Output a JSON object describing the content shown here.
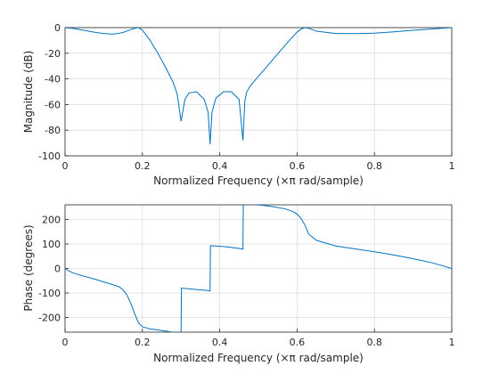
{
  "chart_data": [
    {
      "type": "line",
      "xlabel": "Normalized Frequency  (×π rad/sample)",
      "ylabel": "Magnitude (dB)",
      "xlim": [
        0,
        1
      ],
      "ylim": [
        -100,
        0
      ],
      "xticks": [
        0,
        0.2,
        0.4,
        0.6,
        0.8,
        1
      ],
      "xtick_labels": [
        "0",
        "0.2",
        "0.4",
        "0.6",
        "0.8",
        "1"
      ],
      "yticks": [
        -100,
        -80,
        -60,
        -40,
        -20,
        0
      ],
      "ytick_labels": [
        "-100",
        "-80",
        "-60",
        "-40",
        "-20",
        "0"
      ],
      "grid": true,
      "color": "#0072bd",
      "series": [
        {
          "x": [
            0,
            0.02,
            0.05,
            0.08,
            0.1,
            0.12,
            0.13,
            0.15,
            0.17,
            0.18,
            0.19,
            0.2,
            0.22,
            0.24,
            0.26,
            0.28,
            0.29,
            0.3,
            0.31,
            0.32,
            0.34,
            0.36,
            0.37,
            0.375,
            0.38,
            0.39,
            0.41,
            0.43,
            0.45,
            0.46,
            0.465,
            0.47,
            0.48,
            0.5,
            0.52,
            0.54,
            0.56,
            0.58,
            0.6,
            0.61,
            0.62,
            0.63,
            0.65,
            0.7,
            0.75,
            0.8,
            0.85,
            0.9,
            0.95,
            1
          ],
          "y": [
            0,
            -0.6,
            -2.2,
            -3.8,
            -4.6,
            -5,
            -4.9,
            -3.8,
            -1.6,
            -0.5,
            0,
            -2,
            -10,
            -20,
            -31,
            -43,
            -52,
            -73,
            -56,
            -51,
            -50,
            -56,
            -66,
            -91,
            -66,
            -55,
            -50,
            -50,
            -56,
            -88,
            -57,
            -50,
            -45,
            -38,
            -31,
            -24,
            -17,
            -10,
            -3.5,
            -1.2,
            0,
            -0.5,
            -2.8,
            -4.6,
            -4.7,
            -4.3,
            -3.3,
            -2.1,
            -1,
            0
          ]
        }
      ]
    },
    {
      "type": "line",
      "xlabel": "Normalized Frequency  (×π rad/sample)",
      "ylabel": "Phase (degrees)",
      "xlim": [
        0,
        1
      ],
      "ylim": [
        -260,
        260
      ],
      "xticks": [
        0,
        0.2,
        0.4,
        0.6,
        0.8,
        1
      ],
      "xtick_labels": [
        "0",
        "0.2",
        "0.4",
        "0.6",
        "0.8",
        "1"
      ],
      "yticks": [
        -200,
        -100,
        0,
        100,
        200
      ],
      "ytick_labels": [
        "-200",
        "-100",
        "0",
        "100",
        "200"
      ],
      "grid": true,
      "color": "#0072bd",
      "series": [
        {
          "x": [
            0,
            0.01,
            0.02,
            0.05,
            0.08,
            0.1,
            0.12,
            0.14,
            0.15,
            0.16,
            0.17,
            0.18,
            0.19,
            0.2,
            0.22,
            0.25,
            0.27,
            0.28,
            0.299,
            0.3,
            0.301,
            0.32,
            0.34,
            0.37,
            0.374,
            0.375,
            0.376,
            0.39,
            0.42,
            0.45,
            0.459,
            0.46,
            0.461,
            0.48,
            0.51,
            0.54,
            0.57,
            0.59,
            0.6,
            0.61,
            0.62,
            0.63,
            0.65,
            0.7,
            0.75,
            0.8,
            0.85,
            0.9,
            0.95,
            1
          ],
          "y": [
            0,
            -10,
            -18,
            -32,
            -45,
            -55,
            -64,
            -75,
            -87,
            -108,
            -142,
            -185,
            -222,
            -238,
            -247,
            -253,
            -258,
            -262,
            -265,
            -265,
            -80,
            -83,
            -86,
            -90,
            -92,
            -92,
            93,
            92,
            88,
            82,
            79,
            79,
            263,
            262,
            258,
            252,
            243,
            232,
            222,
            205,
            178,
            140,
            115,
            92,
            80,
            68,
            55,
            40,
            23,
            0
          ]
        }
      ]
    }
  ]
}
